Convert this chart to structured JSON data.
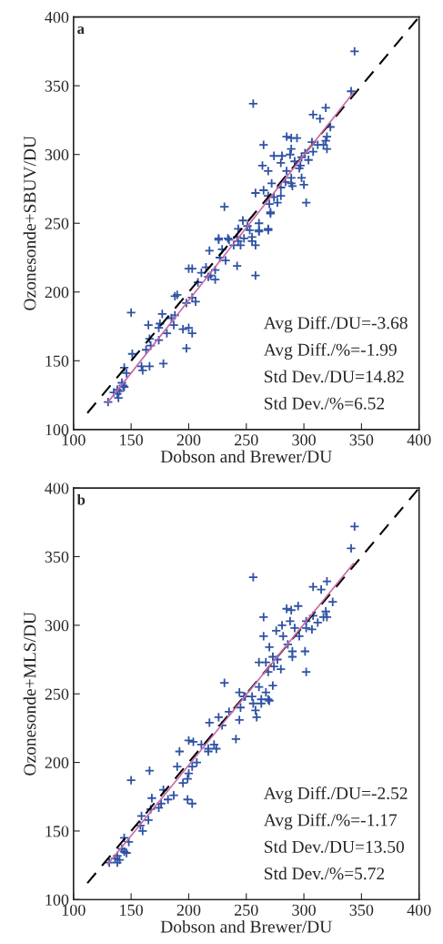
{
  "chart_data": [
    {
      "type": "scatter",
      "xlabel": "Dobson and Brewer/DU",
      "ylabel": "Ozonesonde+SBUV/DU",
      "xlim": [
        100,
        400
      ],
      "ylim": [
        100,
        400
      ],
      "xticks": [
        100,
        150,
        200,
        250,
        300,
        350,
        400
      ],
      "yticks": [
        100,
        150,
        200,
        250,
        300,
        350,
        400
      ],
      "grid": false,
      "legend": false,
      "annotations": [
        "a",
        "Avg Diff./DU=-3.68",
        "Avg Diff./%=-1.99",
        "Std Dev./DU=14.82",
        "Std Dev./%=6.52"
      ],
      "series": [
        {
          "marker": "cross",
          "color": "#2f52a4",
          "x": [
            344,
            341,
            256,
            319,
            308,
            314,
            323,
            320,
            285,
            289,
            294,
            319,
            317,
            320,
            265,
            307,
            312,
            308,
            301,
            289,
            288,
            274,
            281,
            298,
            304,
            280,
            292,
            264,
            269,
            285,
            297,
            296,
            289,
            298,
            289,
            290,
            300,
            272,
            284,
            280,
            258,
            265,
            269,
            274,
            280,
            277,
            270,
            302,
            231,
            271,
            271,
            247,
            243,
            251,
            253,
            261,
            269,
            261,
            226,
            234,
            242,
            255,
            261,
            269,
            226,
            235,
            243,
            248,
            255,
            258,
            218,
            229,
            239,
            245,
            227,
            232,
            242,
            258,
            200,
            203,
            211,
            215,
            223,
            219,
            223,
            217,
            208,
            188,
            190,
            203,
            198,
            206,
            150,
            177,
            188,
            185,
            165,
            175,
            187,
            195,
            200,
            203,
            181,
            174,
            166,
            174,
            167,
            198,
            163,
            151,
            159,
            166,
            178,
            160,
            144,
            146,
            142,
            144,
            138,
            135,
            140,
            139,
            130,
            138,
            143
          ],
          "values": [
            375,
            346,
            337,
            334,
            329,
            326,
            320,
            313,
            313,
            312,
            312,
            310,
            307,
            304,
            307,
            309,
            307,
            302,
            301,
            304,
            300,
            299,
            299,
            298,
            296,
            294,
            295,
            292,
            288,
            288,
            292,
            290,
            283,
            283,
            279,
            277,
            278,
            279,
            280,
            276,
            272,
            274,
            270,
            269,
            270,
            265,
            264,
            265,
            262,
            257,
            258,
            252,
            246,
            248,
            245,
            245,
            246,
            250,
            239,
            239,
            240,
            240,
            244,
            245,
            238,
            238,
            237,
            239,
            237,
            234,
            230,
            231,
            234,
            234,
            225,
            223,
            219,
            212,
            217,
            217,
            214,
            218,
            216,
            212,
            209,
            211,
            207,
            197,
            198,
            196,
            192,
            193,
            185,
            184,
            183,
            181,
            176,
            177,
            176,
            173,
            174,
            170,
            170,
            174,
            166,
            165,
            161,
            159,
            158,
            155,
            146,
            146,
            148,
            143,
            145,
            141,
            134,
            131,
            129,
            127,
            128,
            123,
            120,
            126,
            132
          ]
        },
        {
          "type": "line",
          "color": "#000000",
          "line_style": "dashed",
          "x": [
            112,
            400
          ],
          "values": [
            112,
            400
          ]
        },
        {
          "type": "line",
          "color": "#c868a8",
          "x": [
            130,
            343
          ],
          "values": [
            120,
            345
          ]
        }
      ]
    },
    {
      "type": "scatter",
      "xlabel": "Dobson and Brewer/DU",
      "ylabel": "Ozonesonde+MLS/DU",
      "xlim": [
        100,
        400
      ],
      "ylim": [
        100,
        400
      ],
      "xticks": [
        100,
        150,
        200,
        250,
        300,
        350,
        400
      ],
      "yticks": [
        100,
        150,
        200,
        250,
        300,
        350,
        400
      ],
      "grid": false,
      "legend": false,
      "annotations": [
        "b",
        "Avg Diff./DU=-2.52",
        "Avg Diff./%=-1.17",
        "Std Dev./DU=13.50",
        "Std Dev./%=5.72"
      ],
      "series": [
        {
          "marker": "cross",
          "color": "#2f52a4",
          "x": [
            344,
            341,
            256,
            320,
            308,
            315,
            325,
            285,
            289,
            295,
            319,
            317,
            320,
            265,
            308,
            302,
            312,
            288,
            281,
            276,
            292,
            302,
            307,
            296,
            265,
            282,
            286,
            270,
            290,
            301,
            290,
            261,
            267,
            273,
            277,
            274,
            280,
            269,
            302,
            231,
            261,
            273,
            244,
            248,
            255,
            263,
            269,
            249,
            267,
            263,
            270,
            256,
            245,
            258,
            259,
            226,
            235,
            244,
            218,
            229,
            241,
            200,
            204,
            211,
            217,
            222,
            224,
            217,
            192,
            207,
            203,
            190,
            200,
            199,
            195,
            150,
            166,
            178,
            187,
            182,
            176,
            168,
            199,
            203,
            174,
            167,
            159,
            165,
            158,
            160,
            144,
            148,
            142,
            144,
            138,
            136,
            140,
            131,
            138,
            146
          ],
          "values": [
            372,
            356,
            335,
            332,
            328,
            326,
            317,
            312,
            311,
            314,
            310,
            306,
            306,
            306,
            307,
            303,
            302,
            303,
            300,
            296,
            298,
            298,
            297,
            292,
            292,
            292,
            286,
            284,
            281,
            281,
            277,
            273,
            273,
            277,
            275,
            270,
            268,
            266,
            266,
            258,
            255,
            256,
            251,
            248,
            248,
            246,
            246,
            248,
            251,
            243,
            245,
            243,
            240,
            238,
            233,
            233,
            237,
            231,
            229,
            227,
            217,
            216,
            215,
            213,
            210,
            213,
            210,
            208,
            208,
            200,
            197,
            197,
            192,
            188,
            185,
            187,
            194,
            180,
            176,
            173,
            170,
            174,
            173,
            170,
            167,
            166,
            161,
            158,
            154,
            150,
            145,
            142,
            137,
            135,
            132,
            130,
            129,
            127,
            127,
            134
          ]
        },
        {
          "type": "line",
          "color": "#000000",
          "line_style": "dashed",
          "x": [
            112,
            400
          ],
          "values": [
            112,
            400
          ]
        },
        {
          "type": "line",
          "color": "#c868a8",
          "x": [
            130,
            343
          ],
          "values": [
            126,
            345
          ]
        }
      ]
    }
  ]
}
